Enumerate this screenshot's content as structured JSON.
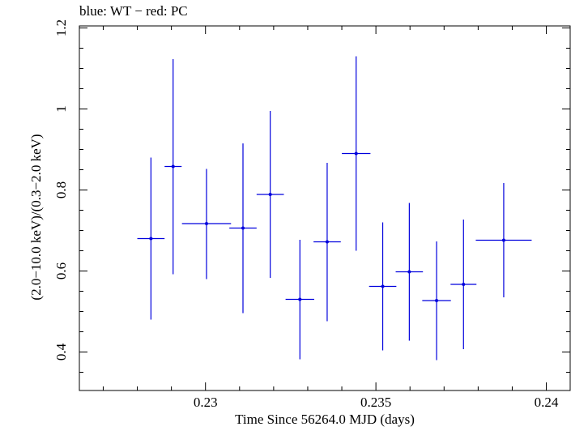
{
  "chart_data": {
    "type": "scatter",
    "title": "blue: WT − red: PC",
    "xlabel": "Time Since 56264.0 MJD (days)",
    "ylabel": "(2.0−10.0 keV)/(0.3−2.0 keV)",
    "xlim": [
      0.2263,
      0.2407
    ],
    "ylim": [
      0.305,
      1.205
    ],
    "xticks": [
      0.23,
      0.235,
      0.24
    ],
    "xtick_labels": [
      "0.23",
      "0.235",
      "0.24"
    ],
    "yticks": [
      0.4,
      0.6,
      0.8,
      1.0,
      1.2
    ],
    "ytick_labels": [
      "0.4",
      "0.6",
      "0.8",
      "1",
      "1.2"
    ],
    "grid": false,
    "series": [
      {
        "color": "#0000dd",
        "points": [
          {
            "x": 0.2284,
            "y": 0.68,
            "xerr": 0.0004,
            "ylo": 0.48,
            "yhi": 0.88
          },
          {
            "x": 0.22905,
            "y": 0.858,
            "xerr": 0.00025,
            "ylo": 0.592,
            "yhi": 1.123
          },
          {
            "x": 0.23003,
            "y": 0.717,
            "xerr": 0.00072,
            "ylo": 0.58,
            "yhi": 0.852
          },
          {
            "x": 0.2311,
            "y": 0.706,
            "xerr": 0.0004,
            "ylo": 0.496,
            "yhi": 0.915
          },
          {
            "x": 0.2319,
            "y": 0.789,
            "xerr": 0.0004,
            "ylo": 0.583,
            "yhi": 0.995
          },
          {
            "x": 0.23277,
            "y": 0.53,
            "xerr": 0.00042,
            "ylo": 0.382,
            "yhi": 0.677
          },
          {
            "x": 0.23357,
            "y": 0.672,
            "xerr": 0.0004,
            "ylo": 0.476,
            "yhi": 0.867
          },
          {
            "x": 0.23442,
            "y": 0.89,
            "xerr": 0.00042,
            "ylo": 0.65,
            "yhi": 1.13
          },
          {
            "x": 0.2352,
            "y": 0.562,
            "xerr": 0.0004,
            "ylo": 0.404,
            "yhi": 0.72
          },
          {
            "x": 0.23598,
            "y": 0.598,
            "xerr": 0.0004,
            "ylo": 0.428,
            "yhi": 0.768
          },
          {
            "x": 0.23678,
            "y": 0.527,
            "xerr": 0.00042,
            "ylo": 0.38,
            "yhi": 0.673
          },
          {
            "x": 0.23757,
            "y": 0.567,
            "xerr": 0.00038,
            "ylo": 0.407,
            "yhi": 0.727
          },
          {
            "x": 0.23875,
            "y": 0.676,
            "xerr": 0.00082,
            "ylo": 0.535,
            "yhi": 0.817
          }
        ]
      }
    ]
  }
}
